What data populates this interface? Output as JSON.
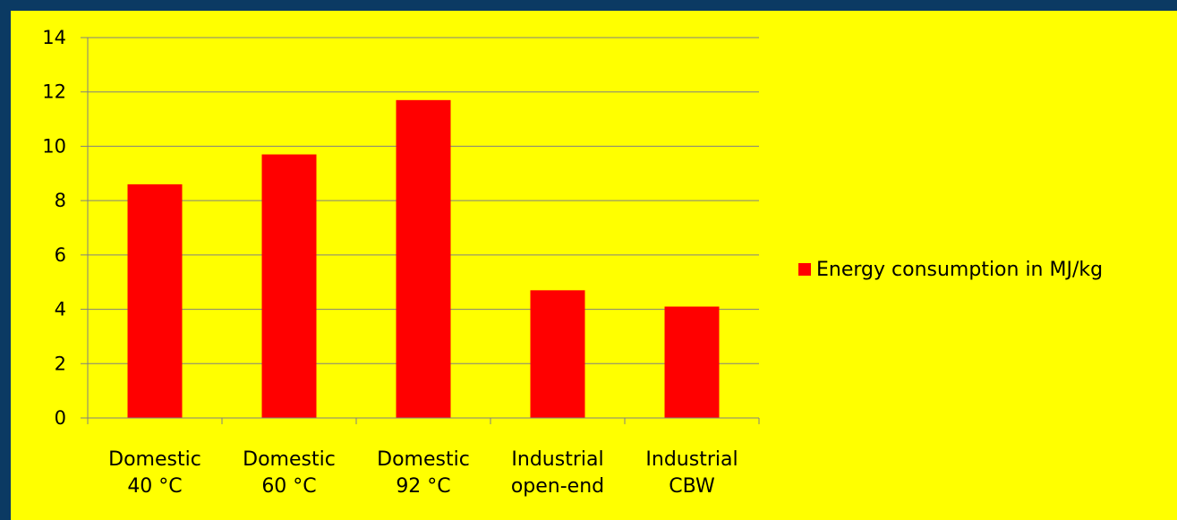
{
  "chart_data": {
    "type": "bar",
    "categories": [
      [
        "Domestic",
        "40 °C"
      ],
      [
        "Domestic",
        "60 °C"
      ],
      [
        "Domestic",
        "92 °C"
      ],
      [
        "Industrial",
        "open-end"
      ],
      [
        "Industrial",
        "CBW"
      ]
    ],
    "series": [
      {
        "name": "Energy consumption in MJ/kg",
        "values": [
          8.6,
          9.7,
          11.7,
          4.7,
          4.1
        ]
      }
    ],
    "ylim": [
      0,
      14
    ],
    "yticks": [
      "0",
      "2",
      "4",
      "6",
      "8",
      "10",
      "12",
      "14"
    ],
    "grid": true,
    "legend_position": "right",
    "colors": {
      "bar": "#ff0000",
      "background": "#ffff00",
      "frame": "#0b3a63",
      "gridline": "#808080"
    }
  }
}
